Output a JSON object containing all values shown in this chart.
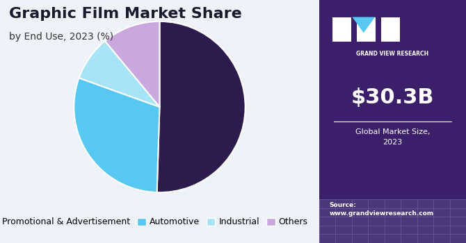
{
  "title": "Graphic Film Market Share",
  "subtitle": "by End Use, 2023 (%)",
  "slices": [
    50.5,
    30.0,
    8.5,
    11.0
  ],
  "labels": [
    "Promotional & Advertisement",
    "Automotive",
    "Industrial",
    "Others"
  ],
  "colors": [
    "#2d1b4e",
    "#57c8f2",
    "#a8e4f7",
    "#c9a8e0"
  ],
  "startangle": 90,
  "bg_color": "#eef3fa",
  "right_panel_bg": "#3b1f6b",
  "right_panel_bottom_bg": "#4a3878",
  "market_size": "$30.3B",
  "market_size_label": "Global Market Size,\n2023",
  "source_text": "Source:\nwww.grandviewresearch.com",
  "brand_name": "GRAND VIEW RESEARCH",
  "title_fontsize": 16,
  "subtitle_fontsize": 10,
  "legend_fontsize": 9
}
